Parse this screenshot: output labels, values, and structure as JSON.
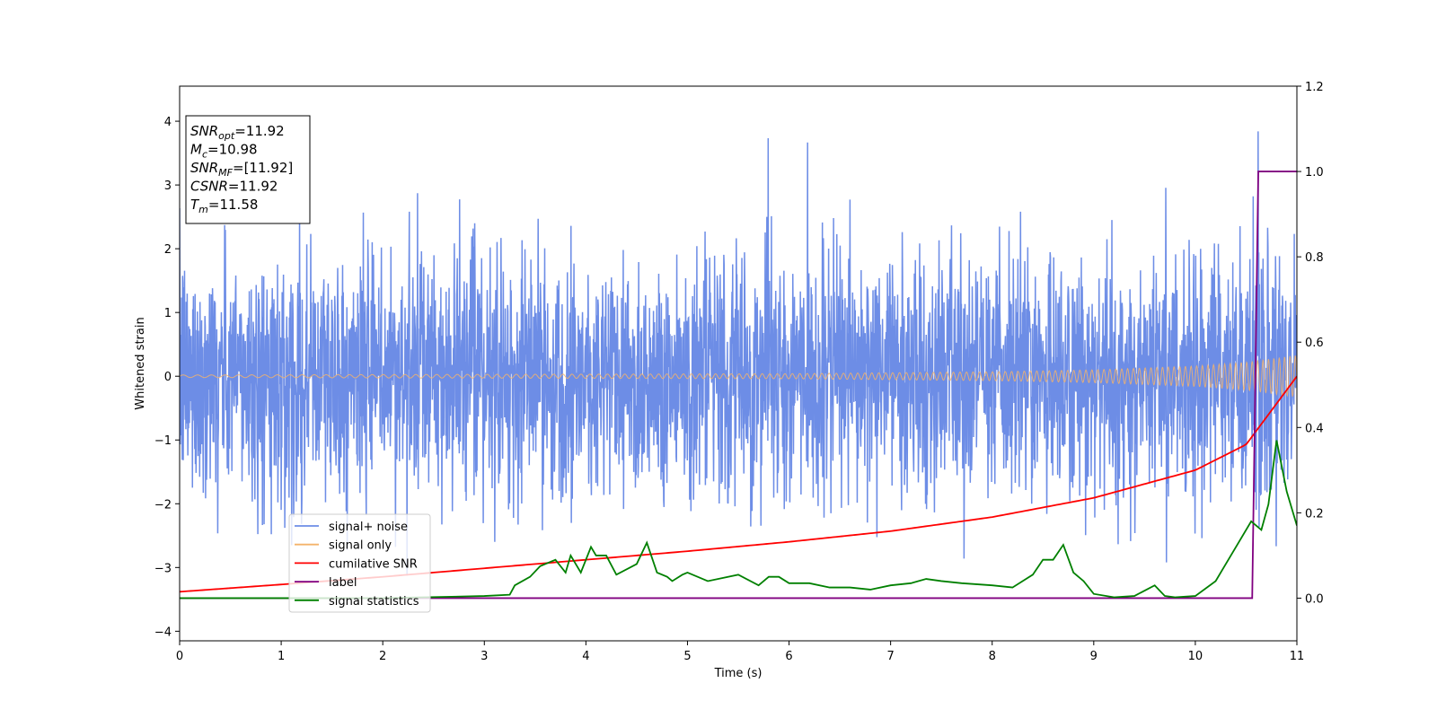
{
  "chart_data": {
    "type": "line",
    "title": "",
    "xlabel": "Time (s)",
    "ylabel": "Whitened strain",
    "ylabel_right": "",
    "xlim": [
      0,
      11
    ],
    "ylim_left": [
      -4.15,
      4.55
    ],
    "ylim_right": [
      -0.1,
      1.2
    ],
    "x_ticks": [
      "0",
      "1",
      "2",
      "3",
      "4",
      "5",
      "6",
      "7",
      "8",
      "9",
      "10",
      "11"
    ],
    "y_ticks_left": [
      "−4",
      "−3",
      "−2",
      "−1",
      "0",
      "1",
      "2",
      "3",
      "4"
    ],
    "y_ticks_right": [
      "0.0",
      "0.2",
      "0.4",
      "0.6",
      "0.8",
      "1.0",
      "1.2"
    ],
    "grid": false,
    "legend_position": "lower-left",
    "series": [
      {
        "name": "signal+ noise",
        "axis": "left",
        "color": "#6d8de6",
        "description_range": [
          -3.7,
          4.2
        ],
        "approx_std": 0.95
      },
      {
        "name": "signal only",
        "axis": "left",
        "color": "#f4b36a",
        "amplitude_points": {
          "x": [
            0,
            3,
            6,
            8,
            9,
            10,
            10.5,
            11
          ],
          "y": [
            0.02,
            0.03,
            0.04,
            0.07,
            0.1,
            0.16,
            0.22,
            0.33
          ]
        }
      },
      {
        "name": "cumilative SNR",
        "axis": "right",
        "color": "#ff0000",
        "x": [
          0,
          1,
          2,
          3,
          4,
          5,
          6,
          7,
          8,
          9,
          10,
          10.5,
          11
        ],
        "y": [
          0.015,
          0.032,
          0.05,
          0.07,
          0.09,
          0.11,
          0.132,
          0.157,
          0.19,
          0.235,
          0.3,
          0.36,
          0.52
        ]
      },
      {
        "name": "label",
        "axis": "right",
        "color": "#800080",
        "x": [
          0,
          10.56,
          10.62,
          11
        ],
        "y": [
          0.0,
          0.0,
          1.0,
          1.0
        ]
      },
      {
        "name": "signal statistics",
        "axis": "right",
        "color": "#008000",
        "x": [
          0,
          1,
          2,
          3,
          3.25,
          3.3,
          3.45,
          3.55,
          3.7,
          3.8,
          3.85,
          3.95,
          4.05,
          4.1,
          4.2,
          4.3,
          4.5,
          4.6,
          4.7,
          4.8,
          4.85,
          4.95,
          5.0,
          5.1,
          5.2,
          5.5,
          5.7,
          5.8,
          5.9,
          6.0,
          6.2,
          6.4,
          6.6,
          6.8,
          7.0,
          7.2,
          7.35,
          7.5,
          7.7,
          8.0,
          8.2,
          8.4,
          8.5,
          8.6,
          8.7,
          8.8,
          8.9,
          9.0,
          9.2,
          9.4,
          9.6,
          9.7,
          9.8,
          10.0,
          10.2,
          10.4,
          10.55,
          10.65,
          10.72,
          10.8,
          10.9,
          11.0
        ],
        "y": [
          0.0,
          0.0,
          0.0,
          0.005,
          0.008,
          0.03,
          0.05,
          0.075,
          0.09,
          0.06,
          0.1,
          0.06,
          0.12,
          0.1,
          0.1,
          0.055,
          0.08,
          0.13,
          0.06,
          0.05,
          0.04,
          0.055,
          0.06,
          0.05,
          0.04,
          0.055,
          0.03,
          0.05,
          0.05,
          0.035,
          0.035,
          0.025,
          0.025,
          0.02,
          0.03,
          0.035,
          0.045,
          0.04,
          0.035,
          0.03,
          0.025,
          0.055,
          0.09,
          0.09,
          0.125,
          0.06,
          0.04,
          0.01,
          0.002,
          0.005,
          0.03,
          0.005,
          0.002,
          0.005,
          0.04,
          0.12,
          0.18,
          0.16,
          0.22,
          0.37,
          0.25,
          0.17
        ]
      }
    ],
    "annotations": [
      {
        "var": "SNR",
        "sub": "opt",
        "value": "=11.92"
      },
      {
        "var": "M",
        "sub": "c",
        "value": "=10.98"
      },
      {
        "var": "SNR",
        "sub": "MF",
        "value": "=[11.92]"
      },
      {
        "var": "CSNR",
        "sub": "",
        "value": "=11.92"
      },
      {
        "var": "T",
        "sub": "m",
        "value": "=11.58"
      }
    ]
  }
}
